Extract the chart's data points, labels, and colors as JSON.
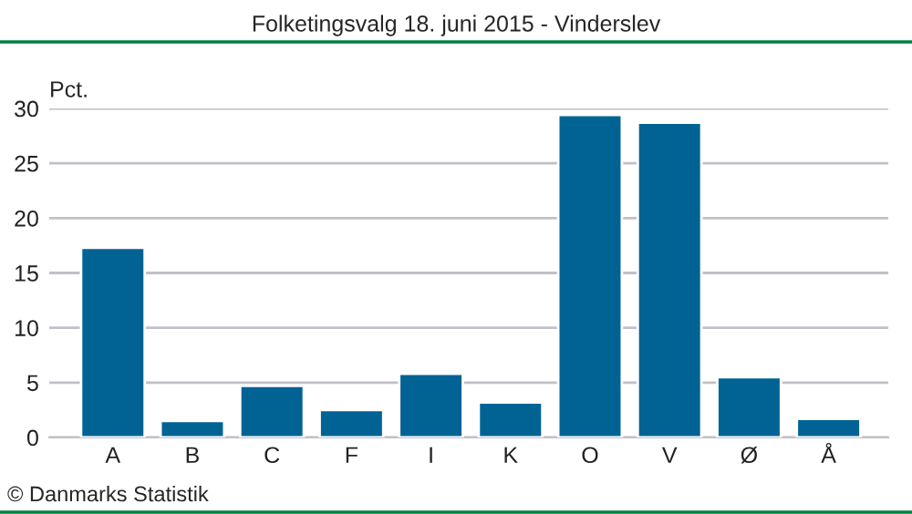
{
  "chart_data": {
    "type": "bar",
    "title": "Folketingsvalg 18. juni 2015 - Vinderslev",
    "ylabel": "Pct.",
    "categories": [
      "A",
      "B",
      "C",
      "F",
      "I",
      "K",
      "O",
      "V",
      "Ø",
      "Å"
    ],
    "values": [
      17.3,
      1.5,
      4.7,
      2.5,
      5.8,
      3.2,
      29.4,
      28.7,
      5.5,
      1.7
    ],
    "color": "#006394",
    "ylim": [
      0,
      30
    ],
    "yticks": [
      0,
      5,
      10,
      15,
      20,
      25,
      30
    ],
    "grid": "y",
    "annotations": [
      "© Danmarks Statistik"
    ]
  }
}
